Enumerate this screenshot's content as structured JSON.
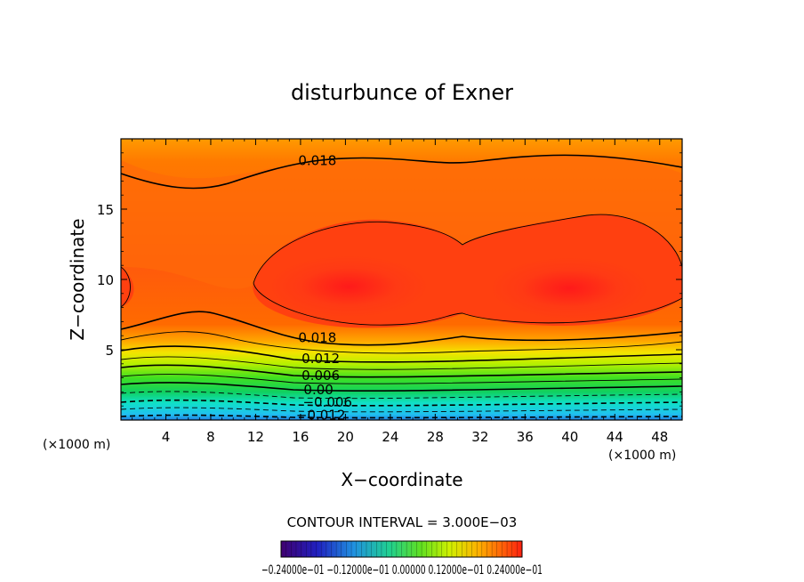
{
  "chart_data": {
    "type": "contour",
    "title": "disturbunce of Exner",
    "xlabel": "X−coordinate",
    "ylabel": "Z−coordinate",
    "x_unit": "(×1000 m)",
    "y_unit": "(×1000 m)",
    "xlim": [
      0,
      50
    ],
    "ylim": [
      0,
      20
    ],
    "x_ticks": [
      4,
      8,
      12,
      16,
      20,
      24,
      28,
      32,
      36,
      40,
      44,
      48
    ],
    "y_ticks": [
      5,
      10,
      15
    ],
    "contour_interval_text": "CONTOUR INTERVAL = 3.000E−03",
    "contour_labels": [
      {
        "text": "0.018",
        "x": 17.5,
        "z": 18.2
      },
      {
        "text": "0.018",
        "x": 17.5,
        "z": 5.6
      },
      {
        "text": "0.012",
        "x": 17.8,
        "z": 4.1
      },
      {
        "text": "0.006",
        "x": 17.8,
        "z": 2.9
      },
      {
        "text": "0.00",
        "x": 17.6,
        "z": 1.9
      },
      {
        "text": "−0.006",
        "x": 18.4,
        "z": 1.0
      },
      {
        "text": "−0.012",
        "x": 17.8,
        "z": 0.1
      }
    ],
    "field_levels": [
      -0.012,
      -0.009,
      -0.006,
      -0.003,
      0.0,
      0.003,
      0.006,
      0.009,
      0.012,
      0.015,
      0.018,
      0.021
    ],
    "colorbar": {
      "min": -0.024,
      "max": 0.024,
      "labels_text": "−0.24000e−01 −0.12000e−01 0.00000 0.12000e−01 0.24000e−01"
    }
  }
}
